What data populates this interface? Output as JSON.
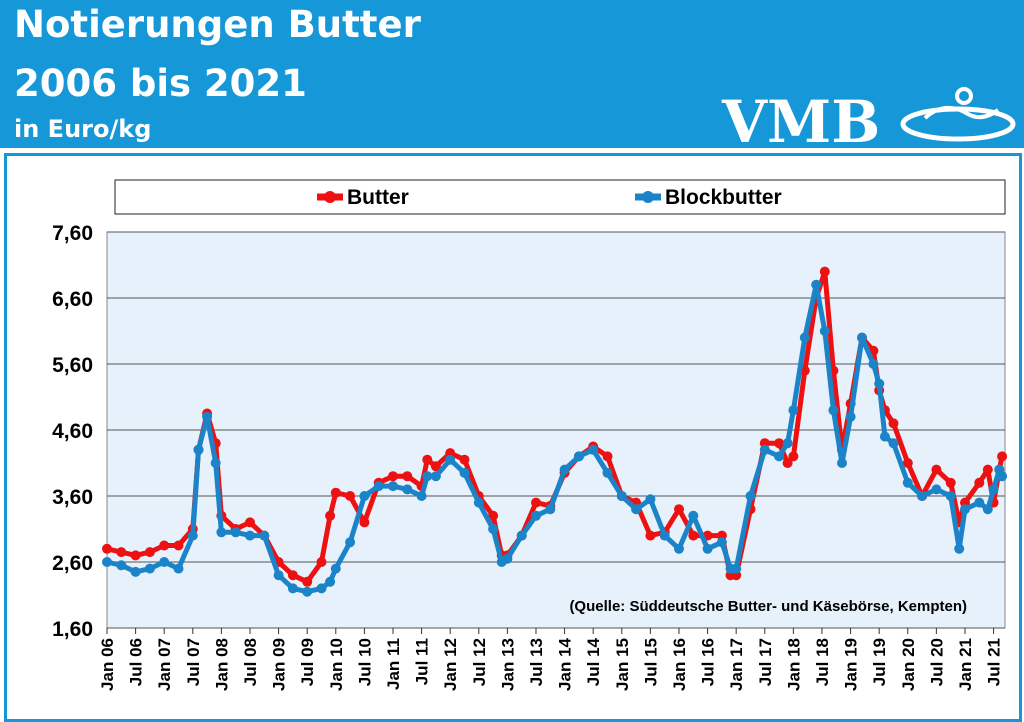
{
  "header": {
    "title_line1": "Notierungen Butter",
    "title_line2": "2006 bis 2021",
    "unit": "in Euro/kg",
    "logo_text": "VMB"
  },
  "colors": {
    "header_bg": "#1697d8",
    "butter": "#ee1111",
    "blockbutter": "#1b84c8",
    "plot_bg": "#e6f1fb"
  },
  "chart_data": {
    "type": "line",
    "title": "",
    "xlabel": "",
    "ylabel": "",
    "ylim": [
      1.6,
      7.6
    ],
    "yticks": [
      "7,60",
      "6,60",
      "5,60",
      "4,60",
      "3,60",
      "2,60",
      "1,60"
    ],
    "ytick_values": [
      7.6,
      6.6,
      5.6,
      4.6,
      3.6,
      2.6,
      1.6
    ],
    "xlim": [
      2006.0,
      2021.7
    ],
    "xtick_labels": [
      "Jan 06",
      "Jul 06",
      "Jan 07",
      "Jul 07",
      "Jan 08",
      "Jul 08",
      "Jan 09",
      "Jul 09",
      "Jan 10",
      "Jul 10",
      "Jan 11",
      "Jul 11",
      "Jan 12",
      "Jul 12",
      "Jan 13",
      "Jul 13",
      "Jan 14",
      "Jul 14",
      "Jan 15",
      "Jul 15",
      "Jan 16",
      "Jul 16",
      "Jan 17",
      "Jul 17",
      "Jan 18",
      "Jul 18",
      "Jan 19",
      "Jul 19",
      "Jan 20",
      "Jul 20",
      "Jan 21",
      "Jul 21"
    ],
    "legend_position": "top",
    "grid": true,
    "source_note": "(Quelle: Süddeutsche Butter- und Käsebörse, Kempten)",
    "series": [
      {
        "name": "Butter",
        "color": "#ee1111",
        "points": [
          [
            2006.0,
            2.8
          ],
          [
            2006.25,
            2.75
          ],
          [
            2006.5,
            2.7
          ],
          [
            2006.75,
            2.75
          ],
          [
            2007.0,
            2.85
          ],
          [
            2007.25,
            2.85
          ],
          [
            2007.5,
            3.1
          ],
          [
            2007.6,
            4.3
          ],
          [
            2007.75,
            4.85
          ],
          [
            2007.9,
            4.4
          ],
          [
            2008.0,
            3.3
          ],
          [
            2008.25,
            3.1
          ],
          [
            2008.5,
            3.2
          ],
          [
            2008.75,
            3.0
          ],
          [
            2009.0,
            2.6
          ],
          [
            2009.25,
            2.4
          ],
          [
            2009.5,
            2.3
          ],
          [
            2009.75,
            2.6
          ],
          [
            2009.9,
            3.3
          ],
          [
            2010.0,
            3.65
          ],
          [
            2010.25,
            3.6
          ],
          [
            2010.5,
            3.2
          ],
          [
            2010.75,
            3.8
          ],
          [
            2011.0,
            3.9
          ],
          [
            2011.25,
            3.9
          ],
          [
            2011.5,
            3.75
          ],
          [
            2011.6,
            4.15
          ],
          [
            2011.75,
            4.05
          ],
          [
            2012.0,
            4.25
          ],
          [
            2012.25,
            4.15
          ],
          [
            2012.5,
            3.6
          ],
          [
            2012.75,
            3.3
          ],
          [
            2012.9,
            2.7
          ],
          [
            2013.0,
            2.7
          ],
          [
            2013.25,
            3.0
          ],
          [
            2013.5,
            3.5
          ],
          [
            2013.75,
            3.45
          ],
          [
            2014.0,
            3.95
          ],
          [
            2014.25,
            4.2
          ],
          [
            2014.5,
            4.35
          ],
          [
            2014.75,
            4.2
          ],
          [
            2015.0,
            3.6
          ],
          [
            2015.25,
            3.5
          ],
          [
            2015.5,
            3.0
          ],
          [
            2015.75,
            3.05
          ],
          [
            2016.0,
            3.4
          ],
          [
            2016.25,
            3.0
          ],
          [
            2016.5,
            3.0
          ],
          [
            2016.75,
            3.0
          ],
          [
            2016.9,
            2.4
          ],
          [
            2017.0,
            2.4
          ],
          [
            2017.25,
            3.4
          ],
          [
            2017.5,
            4.4
          ],
          [
            2017.75,
            4.4
          ],
          [
            2017.9,
            4.1
          ],
          [
            2018.0,
            4.2
          ],
          [
            2018.2,
            5.5
          ],
          [
            2018.4,
            6.6
          ],
          [
            2018.55,
            7.0
          ],
          [
            2018.7,
            5.5
          ],
          [
            2018.85,
            4.3
          ],
          [
            2019.0,
            5.0
          ],
          [
            2019.2,
            6.0
          ],
          [
            2019.4,
            5.8
          ],
          [
            2019.5,
            5.2
          ],
          [
            2019.6,
            4.9
          ],
          [
            2019.75,
            4.7
          ],
          [
            2020.0,
            4.1
          ],
          [
            2020.25,
            3.6
          ],
          [
            2020.5,
            4.0
          ],
          [
            2020.75,
            3.8
          ],
          [
            2020.9,
            3.2
          ],
          [
            2021.0,
            3.5
          ],
          [
            2021.25,
            3.8
          ],
          [
            2021.4,
            4.0
          ],
          [
            2021.5,
            3.5
          ],
          [
            2021.6,
            4.0
          ],
          [
            2021.65,
            4.2
          ]
        ]
      },
      {
        "name": "Blockbutter",
        "color": "#1b84c8",
        "points": [
          [
            2006.0,
            2.6
          ],
          [
            2006.25,
            2.55
          ],
          [
            2006.5,
            2.45
          ],
          [
            2006.75,
            2.5
          ],
          [
            2007.0,
            2.6
          ],
          [
            2007.25,
            2.5
          ],
          [
            2007.5,
            3.0
          ],
          [
            2007.6,
            4.3
          ],
          [
            2007.75,
            4.8
          ],
          [
            2007.9,
            4.1
          ],
          [
            2008.0,
            3.05
          ],
          [
            2008.25,
            3.05
          ],
          [
            2008.5,
            3.0
          ],
          [
            2008.75,
            3.0
          ],
          [
            2009.0,
            2.4
          ],
          [
            2009.25,
            2.2
          ],
          [
            2009.5,
            2.15
          ],
          [
            2009.75,
            2.2
          ],
          [
            2009.9,
            2.3
          ],
          [
            2010.0,
            2.5
          ],
          [
            2010.25,
            2.9
          ],
          [
            2010.5,
            3.6
          ],
          [
            2010.75,
            3.75
          ],
          [
            2011.0,
            3.75
          ],
          [
            2011.25,
            3.7
          ],
          [
            2011.5,
            3.6
          ],
          [
            2011.6,
            3.9
          ],
          [
            2011.75,
            3.9
          ],
          [
            2012.0,
            4.15
          ],
          [
            2012.25,
            3.95
          ],
          [
            2012.5,
            3.5
          ],
          [
            2012.75,
            3.1
          ],
          [
            2012.9,
            2.6
          ],
          [
            2013.0,
            2.65
          ],
          [
            2013.25,
            3.0
          ],
          [
            2013.5,
            3.3
          ],
          [
            2013.75,
            3.4
          ],
          [
            2014.0,
            4.0
          ],
          [
            2014.25,
            4.2
          ],
          [
            2014.5,
            4.3
          ],
          [
            2014.75,
            3.95
          ],
          [
            2015.0,
            3.6
          ],
          [
            2015.25,
            3.4
          ],
          [
            2015.5,
            3.55
          ],
          [
            2015.75,
            3.0
          ],
          [
            2016.0,
            2.8
          ],
          [
            2016.25,
            3.3
          ],
          [
            2016.5,
            2.8
          ],
          [
            2016.75,
            2.9
          ],
          [
            2016.9,
            2.5
          ],
          [
            2017.0,
            2.5
          ],
          [
            2017.25,
            3.6
          ],
          [
            2017.5,
            4.3
          ],
          [
            2017.75,
            4.2
          ],
          [
            2017.9,
            4.4
          ],
          [
            2018.0,
            4.9
          ],
          [
            2018.2,
            6.0
          ],
          [
            2018.4,
            6.8
          ],
          [
            2018.55,
            6.1
          ],
          [
            2018.7,
            4.9
          ],
          [
            2018.85,
            4.1
          ],
          [
            2019.0,
            4.8
          ],
          [
            2019.2,
            6.0
          ],
          [
            2019.4,
            5.6
          ],
          [
            2019.5,
            5.3
          ],
          [
            2019.6,
            4.5
          ],
          [
            2019.75,
            4.4
          ],
          [
            2020.0,
            3.8
          ],
          [
            2020.25,
            3.6
          ],
          [
            2020.5,
            3.7
          ],
          [
            2020.75,
            3.6
          ],
          [
            2020.9,
            2.8
          ],
          [
            2021.0,
            3.4
          ],
          [
            2021.25,
            3.5
          ],
          [
            2021.4,
            3.4
          ],
          [
            2021.5,
            3.7
          ],
          [
            2021.6,
            4.0
          ],
          [
            2021.65,
            3.9
          ]
        ]
      }
    ]
  }
}
